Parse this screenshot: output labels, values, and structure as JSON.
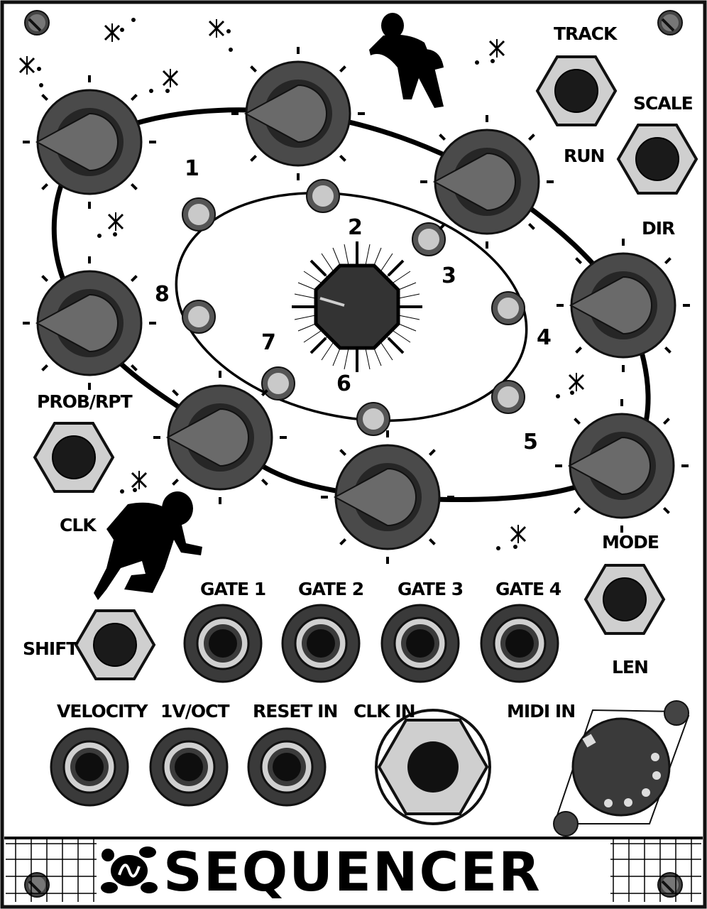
{
  "title": "SEQUENCER",
  "labels": {
    "track": "TRACK",
    "run": "RUN",
    "scale": "SCALE",
    "dir": "DIR",
    "prob_rpt": "PROB/RPT",
    "clk": "CLK",
    "mode": "MODE",
    "len": "LEN",
    "shift": "SHIFT",
    "gate1": "GATE 1",
    "gate2": "GATE 2",
    "gate3": "GATE 3",
    "gate4": "GATE 4",
    "velocity": "VELOCITY",
    "v_oct": "1V/OCT",
    "reset_in": "RESET IN",
    "clk_in": "CLK IN",
    "midi_in": "MIDI IN"
  },
  "steps": [
    "1",
    "2",
    "3",
    "4",
    "5",
    "6",
    "7",
    "8"
  ],
  "icons": {
    "logo": "turtle-logo-icon",
    "astronaut": "astronaut-icon",
    "star": "star-icon",
    "screw": "screw-icon"
  },
  "colors": {
    "panel": "#ffffff",
    "knob": "#4a4a4a",
    "knob_dark": "#222222",
    "pointer": "#6a6a6a",
    "button": "#cfcfcf",
    "led": "#c9c9c9",
    "jack": "#3a3a3a"
  }
}
